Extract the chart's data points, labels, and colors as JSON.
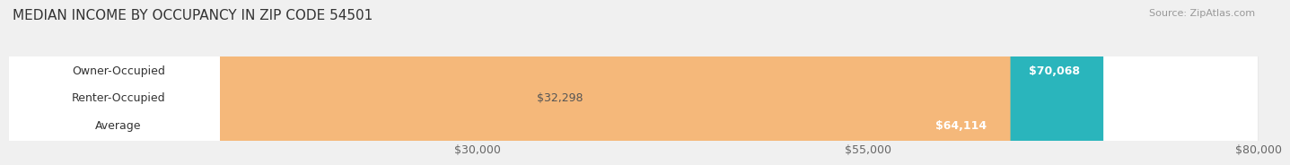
{
  "title": "MEDIAN INCOME BY OCCUPANCY IN ZIP CODE 54501",
  "source": "Source: ZipAtlas.com",
  "categories": [
    "Owner-Occupied",
    "Renter-Occupied",
    "Average"
  ],
  "values": [
    70068,
    32298,
    64114
  ],
  "value_labels": [
    "$70,068",
    "$32,298",
    "$64,114"
  ],
  "bar_colors": [
    "#2ab5bc",
    "#c4a8d0",
    "#f5b87a"
  ],
  "xlim": [
    0,
    80000
  ],
  "xticks": [
    30000,
    55000,
    80000
  ],
  "xtick_labels": [
    "$30,000",
    "$55,000",
    "$80,000"
  ],
  "title_fontsize": 11,
  "source_fontsize": 8,
  "label_fontsize": 9,
  "value_fontsize": 9,
  "tick_fontsize": 9,
  "bar_height": 0.58,
  "background_color": "#f0f0f0",
  "bar_bg_color": "#ffffff",
  "bar_bg_edge_color": "#dddddd"
}
